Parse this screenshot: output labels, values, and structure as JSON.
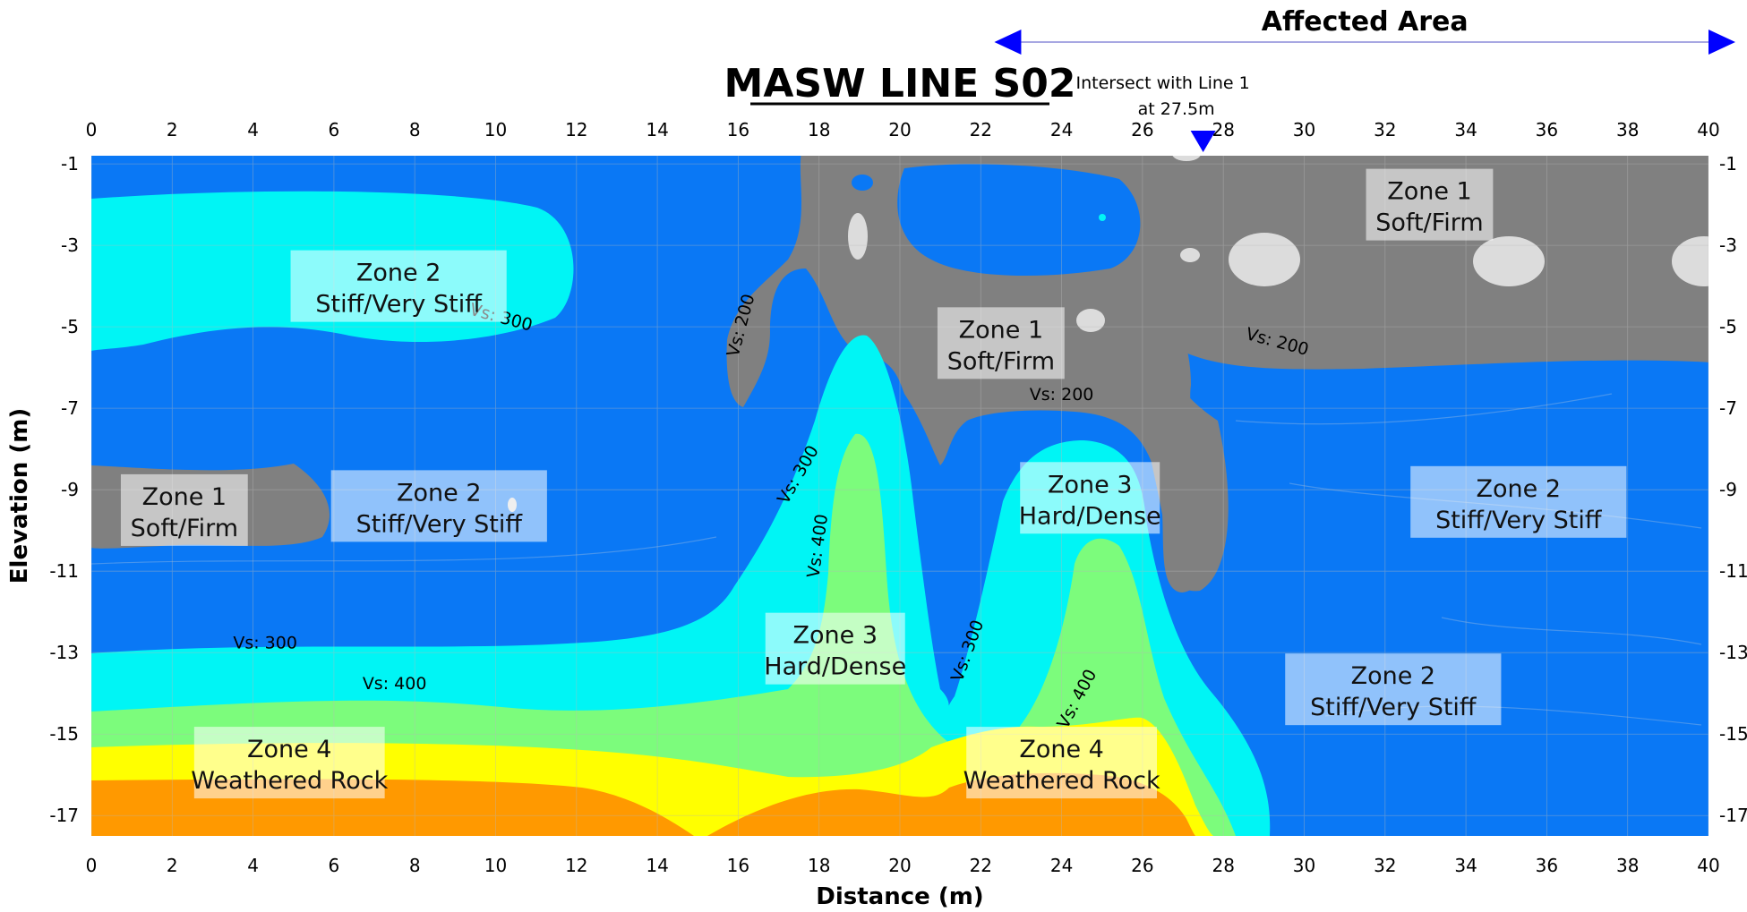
{
  "chart_data": {
    "type": "heatmap",
    "title": "MASW LINE S02",
    "xlabel": "Distance (m)",
    "ylabel": "Elevation (m)",
    "xlim": [
      0,
      40
    ],
    "ylim": [
      -17.5,
      -0.8
    ],
    "x_ticks": [
      0,
      2,
      4,
      6,
      8,
      10,
      12,
      14,
      16,
      18,
      20,
      22,
      24,
      26,
      28,
      30,
      32,
      34,
      36,
      38,
      40
    ],
    "x_tick_labels": [
      "0",
      "2",
      "4",
      "6",
      "8",
      "10",
      "12",
      "14",
      "16",
      "18",
      "20",
      "22",
      "24",
      "26",
      "28",
      "30",
      "32",
      "34",
      "36",
      "38",
      "40"
    ],
    "y_ticks": [
      -1,
      -3,
      -5,
      -7,
      -9,
      -11,
      -13,
      -15,
      -17
    ],
    "y_tick_labels": [
      "-1",
      "-3",
      "-5",
      "-7",
      "-9",
      "-11",
      "-13",
      "-15",
      "-17"
    ],
    "grid": true,
    "colors": {
      "soft": "#808080",
      "stiff": "#0a78f5",
      "hard": "#00f5f5",
      "vs400": "#7cfc7c",
      "rock": "#ffff00",
      "deep": "#ff9900",
      "light_spot": "#dcdcdc",
      "arrow": "#0000ff"
    },
    "affected_area": {
      "label": "Affected Area",
      "x_start": 23,
      "x_end": 40
    },
    "intersect": {
      "line1": "Intersect with Line 1",
      "line2": "at 27.5m",
      "x": 27.5
    },
    "contour_labels": [
      {
        "text": "Vs: 300",
        "x": 10.1,
        "y": -4.9,
        "angle": 15
      },
      {
        "text": "Vs: 200",
        "x": 16.2,
        "y": -5.0,
        "angle": -75
      },
      {
        "text": "Vs: 300",
        "x": 17.6,
        "y": -8.7,
        "angle": -60
      },
      {
        "text": "Vs: 400",
        "x": 18.1,
        "y": -10.4,
        "angle": -82
      },
      {
        "text": "Vs: 200",
        "x": 24.0,
        "y": -6.8,
        "angle": 0
      },
      {
        "text": "Vs: 200",
        "x": 29.3,
        "y": -5.5,
        "angle": 15
      },
      {
        "text": "Vs: 300",
        "x": 4.3,
        "y": -12.9,
        "angle": 0
      },
      {
        "text": "Vs: 400",
        "x": 7.5,
        "y": -13.9,
        "angle": 0
      },
      {
        "text": "Vs: 300",
        "x": 21.8,
        "y": -13.0,
        "angle": -70
      },
      {
        "text": "Vs: 400",
        "x": 24.5,
        "y": -14.2,
        "angle": -62
      }
    ],
    "zones": [
      {
        "line1": "Zone 1",
        "line2": "Soft/Firm",
        "x": 33.1,
        "y": -2.0
      },
      {
        "line1": "Zone 2",
        "line2": "Stiff/Very Stiff",
        "x": 7.6,
        "y": -4.0
      },
      {
        "line1": "Zone 1",
        "line2": "Soft/Firm",
        "x": 22.5,
        "y": -5.4
      },
      {
        "line1": "Zone 1",
        "line2": "Soft/Firm",
        "x": 2.3,
        "y": -9.5
      },
      {
        "line1": "Zone 2",
        "line2": "Stiff/Very Stiff",
        "x": 8.6,
        "y": -9.4
      },
      {
        "line1": "Zone 3",
        "line2": "Hard/Dense",
        "x": 24.7,
        "y": -9.2
      },
      {
        "line1": "Zone 2",
        "line2": "Stiff/Very Stiff",
        "x": 35.3,
        "y": -9.3
      },
      {
        "line1": "Zone 3",
        "line2": "Hard/Dense",
        "x": 18.4,
        "y": -12.9
      },
      {
        "line1": "Zone 2",
        "line2": "Stiff/Very Stiff",
        "x": 32.2,
        "y": -13.9
      },
      {
        "line1": "Zone 4",
        "line2": "Weathered Rock",
        "x": 4.9,
        "y": -15.7
      },
      {
        "line1": "Zone 4",
        "line2": "Weathered Rock",
        "x": 24.0,
        "y": -15.7
      }
    ]
  }
}
